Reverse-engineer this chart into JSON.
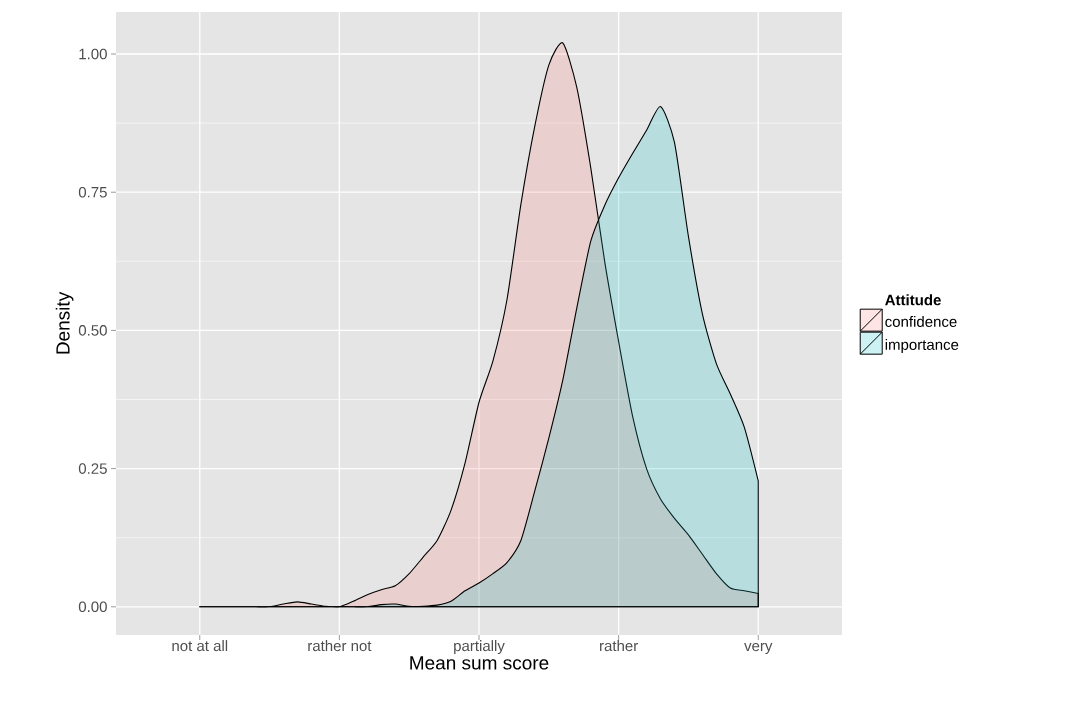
{
  "chart_data": {
    "type": "area",
    "xlabel": "Mean sum score",
    "ylabel": "Density",
    "legend_title": "Attitude",
    "categories": [
      "not at all",
      null,
      null,
      null,
      null,
      null,
      null,
      null,
      null,
      null,
      "rather not",
      null,
      null,
      null,
      null,
      null,
      null,
      null,
      null,
      null,
      "partially",
      null,
      null,
      null,
      null,
      null,
      null,
      null,
      null,
      null,
      "rather",
      null,
      null,
      null,
      null,
      null,
      null,
      null,
      null,
      null,
      "very"
    ],
    "ylim": [
      -0.051,
      1.076
    ],
    "yticks": [
      {
        "value": 0,
        "label": "0.00"
      },
      {
        "value": 0.25,
        "label": "0.25"
      },
      {
        "value": 0.5,
        "label": "0.50"
      },
      {
        "value": 0.75,
        "label": "0.75"
      },
      {
        "value": 1,
        "label": "1.00"
      }
    ],
    "grid": true,
    "legend": "right",
    "series": [
      {
        "name": "confidence",
        "color": "#f8766d",
        "values": [
          0,
          0,
          0,
          0,
          0,
          0,
          0.005,
          0.009,
          0.005,
          0.001,
          0,
          0.01,
          0.022,
          0.031,
          0.038,
          0.06,
          0.09,
          0.12,
          0.175,
          0.26,
          0.37,
          0.445,
          0.555,
          0.728,
          0.87,
          0.98,
          1.02,
          0.94,
          0.795,
          0.625,
          0.48,
          0.345,
          0.25,
          0.195,
          0.16,
          0.13,
          0.095,
          0.06,
          0.034,
          0.029,
          0.024
        ]
      },
      {
        "name": "importance",
        "color": "#00bfc4",
        "values": [
          0,
          0,
          0,
          0,
          0,
          0,
          0,
          0,
          0,
          0,
          0,
          0,
          0,
          0.004,
          0.005,
          0.001,
          0.001,
          0.003,
          0.01,
          0.029,
          0.043,
          0.06,
          0.08,
          0.12,
          0.21,
          0.305,
          0.41,
          0.54,
          0.661,
          0.726,
          0.776,
          0.82,
          0.862,
          0.905,
          0.84,
          0.67,
          0.53,
          0.44,
          0.385,
          0.325,
          0.228
        ]
      }
    ]
  }
}
